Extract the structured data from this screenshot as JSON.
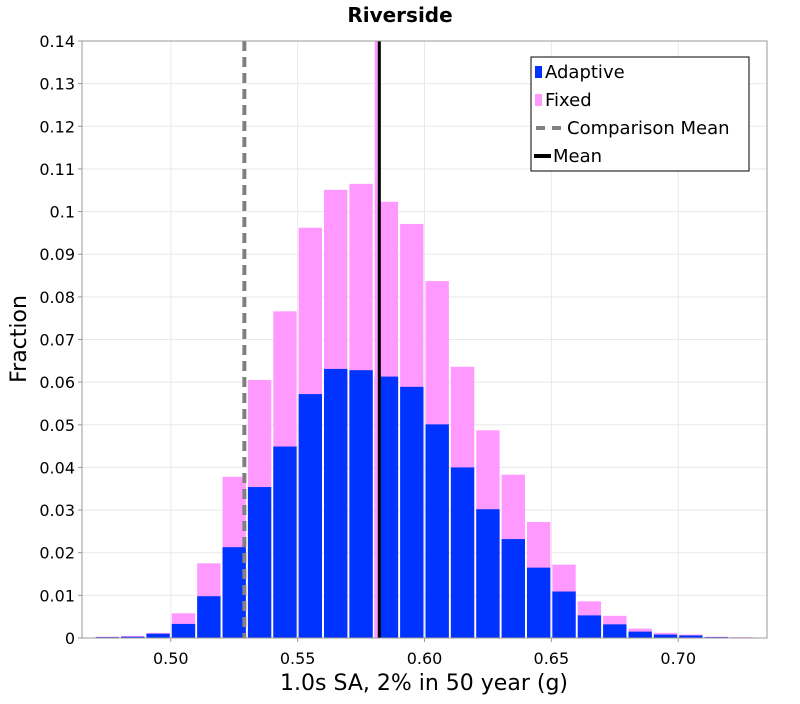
{
  "chart_data": {
    "type": "bar",
    "title": "Riverside",
    "xlabel": "1.0s SA, 2% in 50 year (g)",
    "ylabel": "Fraction",
    "xlim": [
      0.465,
      0.735
    ],
    "ylim": [
      0,
      0.14
    ],
    "bin_width": 0.01,
    "x_ticks": [
      "0.50",
      "0.55",
      "0.60",
      "0.65",
      "0.70"
    ],
    "y_ticks": [
      "0",
      "0.01",
      "0.02",
      "0.03",
      "0.04",
      "0.05",
      "0.06",
      "0.07",
      "0.08",
      "0.09",
      "0.1",
      "0.11",
      "0.12",
      "0.13",
      "0.14"
    ],
    "grid": true,
    "legend_position": "top-right",
    "bin_centers": [
      0.475,
      0.485,
      0.495,
      0.505,
      0.515,
      0.525,
      0.535,
      0.545,
      0.555,
      0.565,
      0.575,
      0.585,
      0.595,
      0.605,
      0.615,
      0.625,
      0.635,
      0.645,
      0.655,
      0.665,
      0.675,
      0.685,
      0.695,
      0.705,
      0.715,
      0.725
    ],
    "series": [
      {
        "name": "Adaptive",
        "color": "#0033ff",
        "values": [
          0.0002,
          0.0003,
          0.001,
          0.0033,
          0.0098,
          0.0213,
          0.0354,
          0.0449,
          0.0572,
          0.0631,
          0.0628,
          0.0613,
          0.0589,
          0.0501,
          0.04,
          0.0302,
          0.0232,
          0.0165,
          0.0109,
          0.0053,
          0.0032,
          0.0015,
          0.0008,
          0.0006,
          0.0002,
          0.0001
        ]
      },
      {
        "name": "Fixed",
        "color": "#ff99ff",
        "values": [
          0.0003,
          0.0005,
          0.0012,
          0.0058,
          0.0175,
          0.0378,
          0.0605,
          0.0766,
          0.0962,
          0.1051,
          0.1065,
          0.1023,
          0.0971,
          0.0837,
          0.0636,
          0.0487,
          0.0383,
          0.0272,
          0.0172,
          0.0086,
          0.0052,
          0.0022,
          0.0012,
          0.0008,
          0.0003,
          0.0002
        ]
      }
    ],
    "lines": [
      {
        "name": "Comparison Mean",
        "x": 0.529,
        "color": "#808080",
        "style": "dashed"
      },
      {
        "name": "Mean",
        "x": 0.582,
        "color": "#000000",
        "style": "solid"
      },
      {
        "x": 0.581,
        "color": "#ff99ff",
        "style": "solid"
      }
    ]
  }
}
